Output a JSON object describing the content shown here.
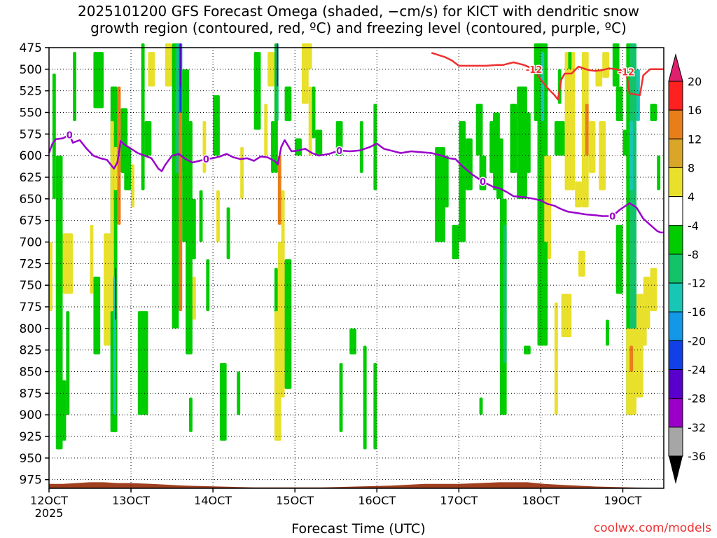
{
  "title_line1": "2025101200 GFS Forecast Omega (shaded, −cm/s) for KICT with dendritic snow",
  "title_line2": "growth region (contoured, red, ºC) and freezing level (contoured, purple, ºC)",
  "credit": "coolwx.com/models",
  "chart_data": {
    "type": "heatmap",
    "xlabel": "Forecast Time (UTC)",
    "x_ticks": [
      {
        "label": "12OCT",
        "sub": "2025",
        "hours": 0
      },
      {
        "label": "13OCT",
        "hours": 24
      },
      {
        "label": "14OCT",
        "hours": 48
      },
      {
        "label": "15OCT",
        "hours": 72
      },
      {
        "label": "16OCT",
        "hours": 96
      },
      {
        "label": "17OCT",
        "hours": 120
      },
      {
        "label": "18OCT",
        "hours": 144
      },
      {
        "label": "19OCT",
        "hours": 168
      }
    ],
    "x_range_hours": [
      0,
      180
    ],
    "ylabel": "",
    "y_ticks": [
      475,
      500,
      525,
      550,
      575,
      600,
      625,
      650,
      675,
      700,
      725,
      750,
      775,
      800,
      825,
      850,
      875,
      900,
      925,
      950,
      975
    ],
    "y_range": [
      475,
      985
    ],
    "colorbar": {
      "ticks": [
        "20",
        "16",
        "12",
        "8",
        "4",
        "-4",
        "-8",
        "-12",
        "-16",
        "-20",
        "-24",
        "-28",
        "-32",
        "-36"
      ],
      "colors": [
        "#ff2020",
        "#e87e1a",
        "#d9a62a",
        "#e8e02a",
        "#ffffff",
        "#00cc00",
        "#12c36a",
        "#17c6b4",
        "#1298e6",
        "#1040e6",
        "#5a00cc",
        "#9a00c8",
        "#a6a6a6"
      ],
      "top_arrow": "#e0206c",
      "bottom_arrow": "#000000"
    },
    "freezing_level": {
      "label": "0",
      "color": "#9a00cc",
      "points": [
        [
          0,
          597
        ],
        [
          1,
          586
        ],
        [
          2,
          581
        ],
        [
          4,
          580
        ],
        [
          6,
          576
        ],
        [
          7,
          585
        ],
        [
          9,
          582
        ],
        [
          11,
          592
        ],
        [
          13,
          600
        ],
        [
          15,
          603
        ],
        [
          17,
          605
        ],
        [
          19,
          615
        ],
        [
          20,
          608
        ],
        [
          21,
          583
        ],
        [
          22,
          587
        ],
        [
          24,
          592
        ],
        [
          26,
          597
        ],
        [
          28,
          600
        ],
        [
          30,
          603
        ],
        [
          32,
          615
        ],
        [
          33,
          618
        ],
        [
          34,
          611
        ],
        [
          36,
          600
        ],
        [
          38,
          598
        ],
        [
          40,
          604
        ],
        [
          42,
          608
        ],
        [
          44,
          606
        ],
        [
          46,
          604
        ],
        [
          48,
          603
        ],
        [
          50,
          601
        ],
        [
          52,
          598
        ],
        [
          54,
          602
        ],
        [
          56,
          604
        ],
        [
          58,
          603
        ],
        [
          60,
          606
        ],
        [
          62,
          601
        ],
        [
          64,
          602
        ],
        [
          66,
          606
        ],
        [
          67,
          610
        ],
        [
          68,
          590
        ],
        [
          69,
          582
        ],
        [
          71,
          595
        ],
        [
          73,
          594
        ],
        [
          75,
          592
        ],
        [
          77,
          597
        ],
        [
          79,
          600
        ],
        [
          82,
          598
        ],
        [
          85,
          594
        ],
        [
          88,
          595
        ],
        [
          91,
          594
        ],
        [
          94,
          590
        ],
        [
          96,
          586
        ],
        [
          98,
          592
        ],
        [
          100,
          594
        ],
        [
          103,
          597
        ],
        [
          106,
          595
        ],
        [
          109,
          596
        ],
        [
          112,
          597
        ],
        [
          115,
          600
        ],
        [
          117,
          603
        ],
        [
          119,
          604
        ],
        [
          121,
          612
        ],
        [
          124,
          622
        ],
        [
          127,
          630
        ],
        [
          130,
          636
        ],
        [
          132,
          638
        ],
        [
          134,
          642
        ],
        [
          136,
          647
        ],
        [
          139,
          648
        ],
        [
          142,
          650
        ],
        [
          144,
          652
        ],
        [
          146,
          656
        ],
        [
          148,
          658
        ],
        [
          150,
          662
        ],
        [
          152,
          665
        ],
        [
          154,
          666
        ],
        [
          157,
          668
        ],
        [
          160,
          669
        ],
        [
          162,
          670
        ],
        [
          165,
          670
        ],
        [
          167,
          663
        ],
        [
          170,
          655
        ],
        [
          172,
          660
        ],
        [
          174,
          673
        ],
        [
          176,
          680
        ],
        [
          178,
          687
        ],
        [
          179,
          689
        ],
        [
          180,
          689
        ]
      ]
    },
    "dgz_contour": {
      "label": "-12",
      "color": "#ee3030",
      "points": [
        [
          112,
          481
        ],
        [
          116,
          486
        ],
        [
          118,
          490
        ],
        [
          120,
          496
        ],
        [
          124,
          496
        ],
        [
          128,
          496
        ],
        [
          131,
          495
        ],
        [
          133,
          495
        ],
        [
          136,
          492
        ],
        [
          139,
          495
        ],
        [
          142,
          500
        ],
        [
          144,
          512
        ],
        [
          146,
          522
        ],
        [
          148,
          530
        ],
        [
          149,
          535
        ],
        [
          150,
          512
        ],
        [
          151,
          505
        ],
        [
          153,
          505
        ],
        [
          155,
          497
        ],
        [
          158,
          501
        ],
        [
          160,
          502
        ],
        [
          162,
          501
        ],
        [
          164,
          499
        ],
        [
          166,
          500
        ],
        [
          169,
          503
        ],
        [
          170,
          528
        ],
        [
          173,
          530
        ],
        [
          174,
          507
        ],
        [
          176,
          500
        ],
        [
          180,
          500
        ]
      ]
    },
    "surface": {
      "label": "",
      "color": "#a04020"
    }
  }
}
